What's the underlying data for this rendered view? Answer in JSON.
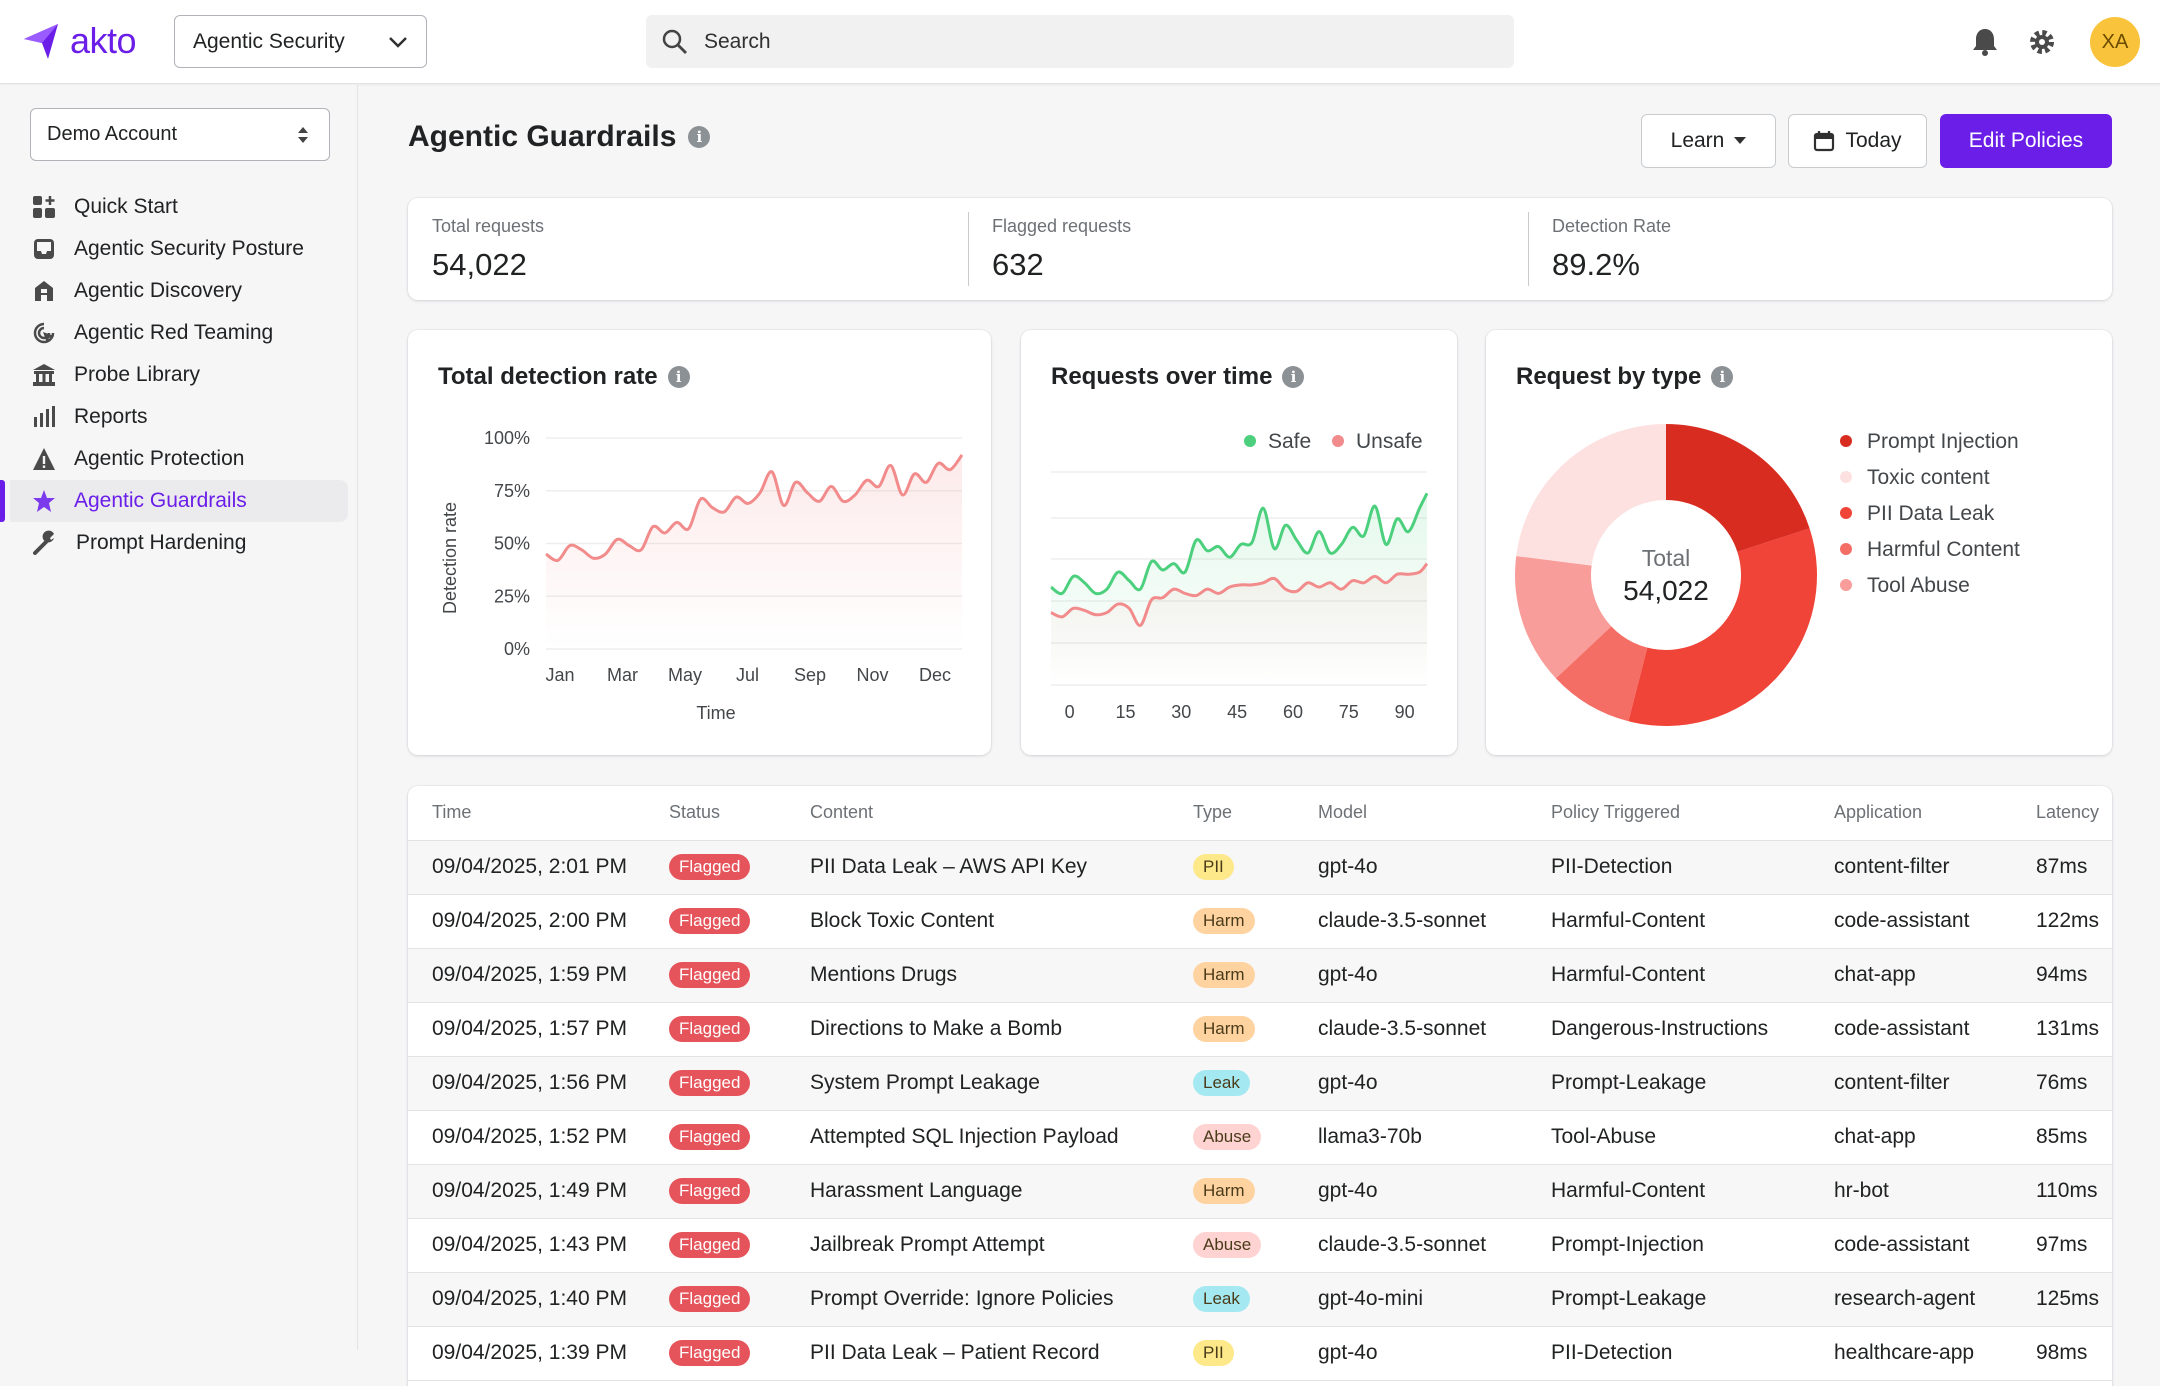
{
  "topbar": {
    "logo": "akto",
    "product_selector": "Agentic Security",
    "search_placeholder": "Search",
    "avatar_initials": "XA"
  },
  "sidebar": {
    "account": "Demo Account",
    "items": [
      {
        "label": "Quick Start",
        "icon": "quick-start-icon"
      },
      {
        "label": "Agentic Security Posture",
        "icon": "inbox-icon"
      },
      {
        "label": "Agentic Discovery",
        "icon": "building-icon"
      },
      {
        "label": "Agentic Red Teaming",
        "icon": "target-cursor-icon"
      },
      {
        "label": "Probe Library",
        "icon": "library-icon"
      },
      {
        "label": "Reports",
        "icon": "bar-chart-icon"
      },
      {
        "label": "Agentic Protection",
        "icon": "warning-icon"
      },
      {
        "label": "Agentic Guardrails",
        "icon": "star-icon",
        "active": true
      },
      {
        "label": "Prompt Hardening",
        "icon": "wrench-icon"
      }
    ]
  },
  "header": {
    "title": "Agentic Guardrails",
    "learn": "Learn",
    "date": "Today",
    "edit": "Edit Policies",
    "accent": "#6a1ee8"
  },
  "stats": [
    {
      "label": "Total requests",
      "value": "54,022"
    },
    {
      "label": "Flagged requests",
      "value": "632"
    },
    {
      "label": "Detection Rate",
      "value": "89.2%"
    }
  ],
  "chart_data": [
    {
      "type": "area",
      "title": "Total detection rate",
      "xlabel": "Time",
      "ylabel": "Detection rate",
      "ylim": [
        0,
        100
      ],
      "yticks": [
        "100%",
        "75%",
        "50%",
        "25%",
        "0%"
      ],
      "xticks": [
        "Jan",
        "Mar",
        "May",
        "Jul",
        "Sep",
        "Nov",
        "Dec"
      ],
      "grid": true,
      "color": "#f28b8b",
      "values": [
        45,
        42,
        49,
        47,
        43,
        45,
        52,
        49,
        47,
        58,
        55,
        60,
        57,
        71,
        67,
        65,
        72,
        69,
        74,
        84,
        68,
        79,
        74,
        70,
        77,
        70,
        73,
        80,
        77,
        87,
        73,
        83,
        79,
        88,
        85,
        92
      ]
    },
    {
      "type": "area",
      "title": "Requests over time",
      "xticks": [
        "0",
        "15",
        "30",
        "45",
        "60",
        "75",
        "90"
      ],
      "xlim": [
        -5,
        96
      ],
      "grid": true,
      "legend": "top-right",
      "series": [
        {
          "name": "Safe",
          "color": "#4cd07d",
          "x": [
            -5,
            -2,
            1,
            4,
            7,
            10,
            13,
            16,
            19,
            22,
            25,
            28,
            31,
            34,
            37,
            40,
            43,
            46,
            49,
            52,
            55,
            58,
            61,
            64,
            67,
            70,
            73,
            76,
            79,
            82,
            85,
            88,
            91,
            94,
            96
          ],
          "values": [
            46,
            43,
            51,
            48,
            43,
            45,
            53,
            49,
            45,
            58,
            54,
            57,
            53,
            68,
            63,
            65,
            60,
            66,
            67,
            83,
            64,
            75,
            68,
            62,
            72,
            62,
            66,
            74,
            70,
            84,
            66,
            78,
            72,
            83,
            90
          ]
        },
        {
          "name": "Unsafe",
          "color": "#f28b8b",
          "x": [
            -5,
            -2,
            1,
            4,
            7,
            10,
            13,
            16,
            19,
            22,
            25,
            28,
            31,
            34,
            37,
            40,
            43,
            46,
            49,
            52,
            55,
            58,
            61,
            64,
            67,
            70,
            73,
            76,
            79,
            82,
            85,
            88,
            91,
            94,
            96
          ],
          "values": [
            34,
            32,
            36,
            35,
            33,
            34,
            38,
            36,
            28,
            40,
            41,
            45,
            43,
            42,
            45,
            43,
            46,
            47,
            47,
            48,
            50,
            45,
            44,
            48,
            46,
            48,
            45,
            49,
            48,
            51,
            48,
            52,
            52,
            53,
            57
          ]
        }
      ]
    },
    {
      "type": "pie",
      "title": "Request by type",
      "center_label": "Total",
      "center_value": "54,022",
      "slices": [
        {
          "name": "Prompt Injection",
          "value": 20,
          "color": "#d92c20"
        },
        {
          "name": "PII Data Leak",
          "value": 34,
          "color": "#ef4437"
        },
        {
          "name": "Harmful Content",
          "value": 9,
          "color": "#f56e66"
        },
        {
          "name": "Tool Abuse",
          "value": 14,
          "color": "#f89d99"
        },
        {
          "name": "Toxic content",
          "value": 23,
          "color": "#fde1e1"
        }
      ],
      "legend": [
        "Prompt Injection",
        "Toxic content",
        "PII Data Leak",
        "Harmful Content",
        "Tool Abuse"
      ]
    }
  ],
  "table": {
    "columns": [
      "Time",
      "Status",
      "Content",
      "Type",
      "Model",
      "Policy Triggered",
      "Application",
      "Latency"
    ],
    "type_colors": {
      "PII": "#fde98a",
      "Harm": "#fed3a0",
      "Leak": "#a4e8f2",
      "Abuse": "#fed3d1"
    },
    "rows": [
      [
        "09/04/2025, 2:01 PM",
        "Flagged",
        "PII Data Leak – AWS API Key",
        "PII",
        "gpt-4o",
        "PII-Detection",
        "content-filter",
        "87ms"
      ],
      [
        "09/04/2025, 2:00 PM",
        "Flagged",
        "Block Toxic Content",
        "Harm",
        "claude-3.5-sonnet",
        "Harmful-Content",
        "code-assistant",
        "122ms"
      ],
      [
        "09/04/2025, 1:59 PM",
        "Flagged",
        "Mentions Drugs",
        "Harm",
        "gpt-4o",
        "Harmful-Content",
        "chat-app",
        "94ms"
      ],
      [
        "09/04/2025, 1:57 PM",
        "Flagged",
        "Directions to Make a Bomb",
        "Harm",
        "claude-3.5-sonnet",
        "Dangerous-Instructions",
        "code-assistant",
        "131ms"
      ],
      [
        "09/04/2025, 1:56 PM",
        "Flagged",
        "System Prompt Leakage",
        "Leak",
        "gpt-4o",
        "Prompt-Leakage",
        "content-filter",
        "76ms"
      ],
      [
        "09/04/2025, 1:52 PM",
        "Flagged",
        "Attempted SQL Injection Payload",
        "Abuse",
        "llama3-70b",
        "Tool-Abuse",
        "chat-app",
        "85ms"
      ],
      [
        "09/04/2025, 1:49 PM",
        "Flagged",
        "Harassment Language",
        "Harm",
        "gpt-4o",
        "Harmful-Content",
        "hr-bot",
        "110ms"
      ],
      [
        "09/04/2025, 1:43 PM",
        "Flagged",
        "Jailbreak Prompt Attempt",
        "Abuse",
        "claude-3.5-sonnet",
        "Prompt-Injection",
        "code-assistant",
        "97ms"
      ],
      [
        "09/04/2025, 1:40 PM",
        "Flagged",
        "Prompt Override: Ignore Policies",
        "Leak",
        "gpt-4o-mini",
        "Prompt-Leakage",
        "research-agent",
        "125ms"
      ],
      [
        "09/04/2025, 1:39 PM",
        "Flagged",
        "PII Data Leak – Patient Record",
        "PII",
        "gpt-4o",
        "PII-Detection",
        "healthcare-app",
        "98ms"
      ]
    ]
  }
}
